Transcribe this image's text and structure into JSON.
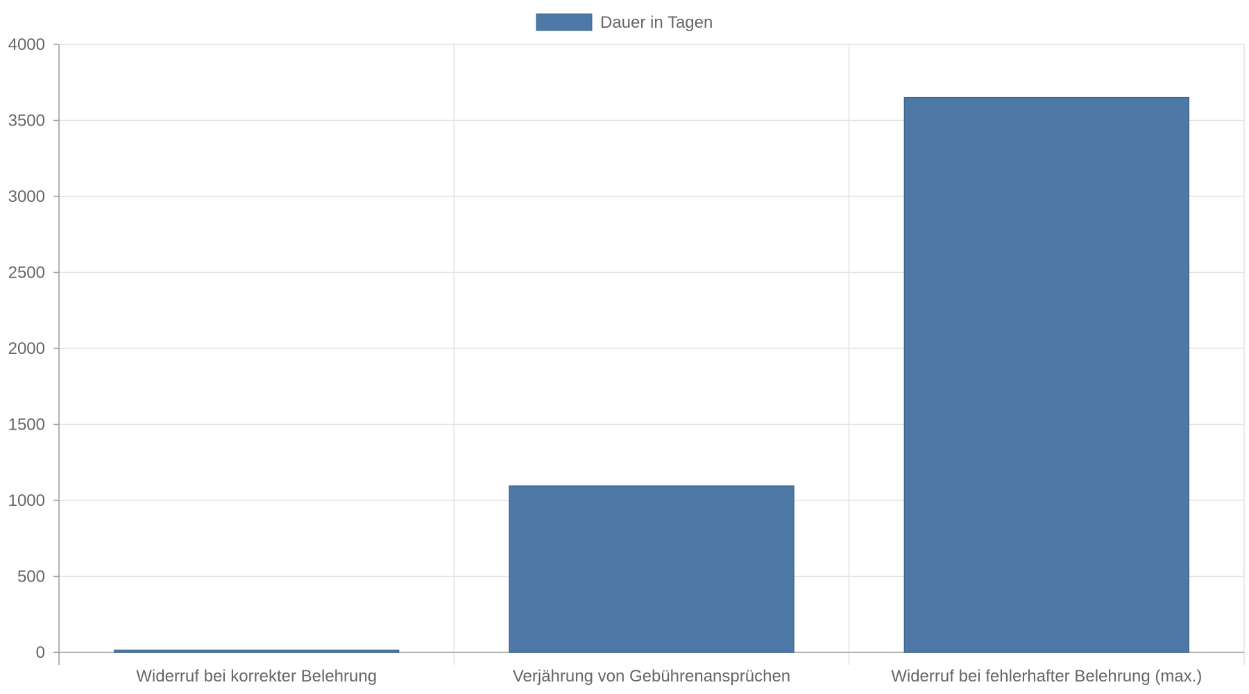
{
  "chart_data": {
    "type": "bar",
    "categories": [
      "Widerruf bei korrekter Belehrung",
      "Verjährung von Gebührenansprüchen",
      "Widerruf bei fehlerhafter Belehrung (max.)"
    ],
    "series": [
      {
        "name": "Dauer in Tagen",
        "values": [
          14,
          1095,
          3650
        ],
        "color": "#4e79a7"
      }
    ],
    "y_ticks": [
      "0",
      "500",
      "1000",
      "1500",
      "2000",
      "2500",
      "3000",
      "3500",
      "4000"
    ],
    "ylim": [
      0,
      4000
    ],
    "legend_position": "top",
    "grid": true
  }
}
